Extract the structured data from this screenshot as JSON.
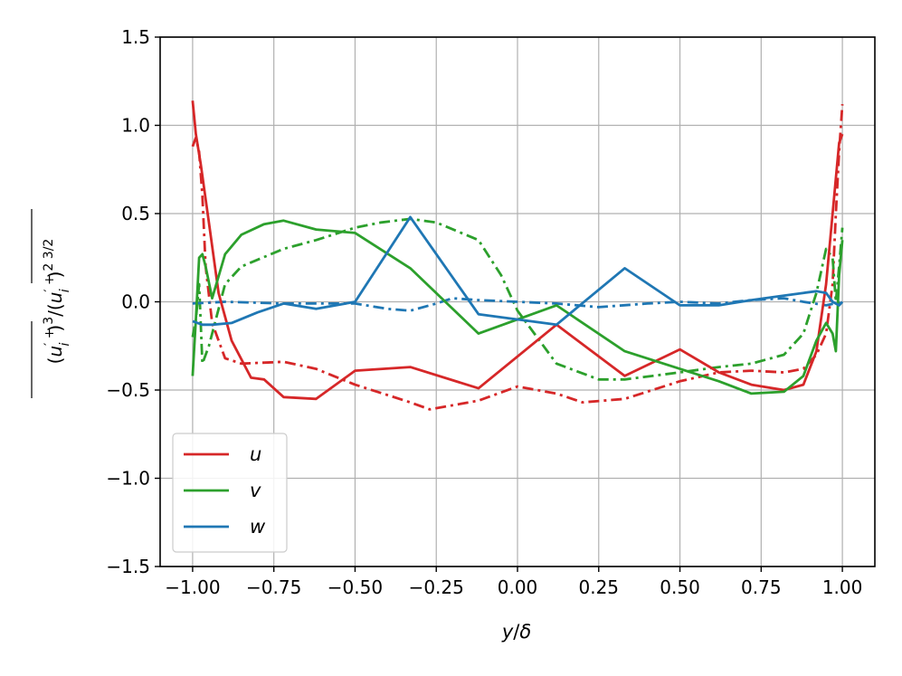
{
  "chart_data": {
    "type": "line",
    "xlabel": "y/δ",
    "ylabel": "(u'_i^+)^3 / (u'_i^+)^2 3/2",
    "xlim": [
      -1.1,
      1.1
    ],
    "ylim": [
      -1.5,
      1.5
    ],
    "x_ticks": [
      -1.0,
      -0.75,
      -0.5,
      -0.25,
      0.0,
      0.25,
      0.5,
      0.75,
      1.0
    ],
    "x_tick_labels": [
      "−1.00",
      "−0.75",
      "−0.50",
      "−0.25",
      "0.00",
      "0.25",
      "0.50",
      "0.75",
      "1.00"
    ],
    "y_ticks": [
      -1.5,
      -1.0,
      -0.5,
      0.0,
      0.5,
      1.0,
      1.5
    ],
    "y_tick_labels": [
      "−1.5",
      "−1.0",
      "−0.5",
      "0.0",
      "0.5",
      "1.0",
      "1.5"
    ],
    "grid": true,
    "legend_position": "lower-left",
    "series": [
      {
        "name": "u",
        "color": "#d62728",
        "style": "solid",
        "x": [
          -1.0,
          -0.99,
          -0.975,
          -0.95,
          -0.92,
          -0.88,
          -0.82,
          -0.78,
          -0.72,
          -0.62,
          -0.5,
          -0.33,
          -0.12,
          0.12,
          0.33,
          0.5,
          0.62,
          0.72,
          0.82,
          0.88,
          0.92,
          0.95,
          0.975,
          0.99,
          1.0
        ],
        "y": [
          1.14,
          0.95,
          0.78,
          0.45,
          0.05,
          -0.22,
          -0.43,
          -0.44,
          -0.54,
          -0.55,
          -0.39,
          -0.37,
          -0.49,
          -0.13,
          -0.42,
          -0.27,
          -0.4,
          -0.47,
          -0.5,
          -0.47,
          -0.28,
          0.1,
          0.6,
          0.9,
          0.95
        ]
      },
      {
        "name": "v",
        "color": "#2ca02c",
        "style": "solid",
        "x": [
          -1.0,
          -0.99,
          -0.98,
          -0.97,
          -0.96,
          -0.94,
          -0.9,
          -0.85,
          -0.78,
          -0.72,
          -0.62,
          -0.5,
          -0.33,
          -0.12,
          0.12,
          0.33,
          0.5,
          0.62,
          0.72,
          0.82,
          0.88,
          0.92,
          0.95,
          0.97,
          0.98,
          0.99,
          1.0
        ],
        "y": [
          -0.42,
          -0.1,
          0.25,
          0.27,
          0.2,
          0.02,
          0.27,
          0.38,
          0.44,
          0.46,
          0.41,
          0.39,
          0.19,
          -0.18,
          -0.02,
          -0.28,
          -0.38,
          -0.45,
          -0.52,
          -0.51,
          -0.42,
          -0.22,
          -0.12,
          -0.18,
          -0.28,
          0.15,
          0.35
        ]
      },
      {
        "name": "w",
        "color": "#1f77b4",
        "style": "solid",
        "x": [
          -1.0,
          -0.97,
          -0.94,
          -0.88,
          -0.8,
          -0.72,
          -0.62,
          -0.5,
          -0.33,
          -0.12,
          0.12,
          0.33,
          0.5,
          0.62,
          0.72,
          0.8,
          0.88,
          0.92,
          0.95,
          0.97,
          0.99,
          1.0
        ],
        "y": [
          -0.11,
          -0.13,
          -0.13,
          -0.12,
          -0.06,
          -0.01,
          -0.04,
          0.0,
          0.48,
          -0.07,
          -0.13,
          0.19,
          -0.02,
          -0.02,
          0.01,
          0.03,
          0.05,
          0.06,
          0.05,
          0.0,
          -0.02,
          0.0
        ]
      },
      {
        "color": "#d62728",
        "style": "dashdot",
        "x": [
          -1.0,
          -0.99,
          -0.98,
          -0.97,
          -0.96,
          -0.94,
          -0.9,
          -0.85,
          -0.72,
          -0.62,
          -0.5,
          -0.33,
          -0.27,
          -0.12,
          0.0,
          0.12,
          0.2,
          0.33,
          0.5,
          0.62,
          0.72,
          0.82,
          0.88,
          0.92,
          0.95,
          0.97,
          0.98,
          0.99,
          1.0
        ],
        "y": [
          0.88,
          0.93,
          0.85,
          0.6,
          0.2,
          -0.12,
          -0.32,
          -0.35,
          -0.34,
          -0.38,
          -0.47,
          -0.57,
          -0.61,
          -0.56,
          -0.48,
          -0.52,
          -0.57,
          -0.55,
          -0.45,
          -0.4,
          -0.39,
          -0.4,
          -0.38,
          -0.3,
          -0.18,
          0.1,
          0.5,
          0.85,
          1.12
        ]
      },
      {
        "color": "#2ca02c",
        "style": "dashdot",
        "x": [
          -1.0,
          -0.99,
          -0.98,
          -0.97,
          -0.95,
          -0.9,
          -0.85,
          -0.72,
          -0.62,
          -0.5,
          -0.42,
          -0.33,
          -0.25,
          -0.12,
          -0.05,
          0.0,
          0.12,
          0.25,
          0.33,
          0.5,
          0.62,
          0.72,
          0.82,
          0.88,
          0.92,
          0.95,
          0.97,
          0.98,
          0.99,
          1.0
        ],
        "y": [
          -0.2,
          -0.1,
          0.1,
          -0.35,
          -0.25,
          0.1,
          0.2,
          0.3,
          0.35,
          0.42,
          0.45,
          0.47,
          0.45,
          0.35,
          0.15,
          -0.05,
          -0.35,
          -0.44,
          -0.44,
          -0.4,
          -0.37,
          -0.35,
          -0.3,
          -0.18,
          0.05,
          0.3,
          0.25,
          0.0,
          0.2,
          0.42
        ]
      },
      {
        "color": "#1f77b4",
        "style": "dashdot",
        "x": [
          -1.0,
          -0.9,
          -0.72,
          -0.5,
          -0.4,
          -0.33,
          -0.25,
          -0.2,
          -0.12,
          0.0,
          0.12,
          0.25,
          0.4,
          0.5,
          0.62,
          0.72,
          0.82,
          0.88,
          0.95,
          1.0
        ],
        "y": [
          -0.01,
          0.0,
          -0.01,
          -0.01,
          -0.04,
          -0.05,
          -0.01,
          0.02,
          0.01,
          0.0,
          -0.01,
          -0.03,
          -0.01,
          0.0,
          -0.01,
          0.01,
          0.02,
          0.0,
          -0.02,
          0.0
        ]
      }
    ]
  }
}
